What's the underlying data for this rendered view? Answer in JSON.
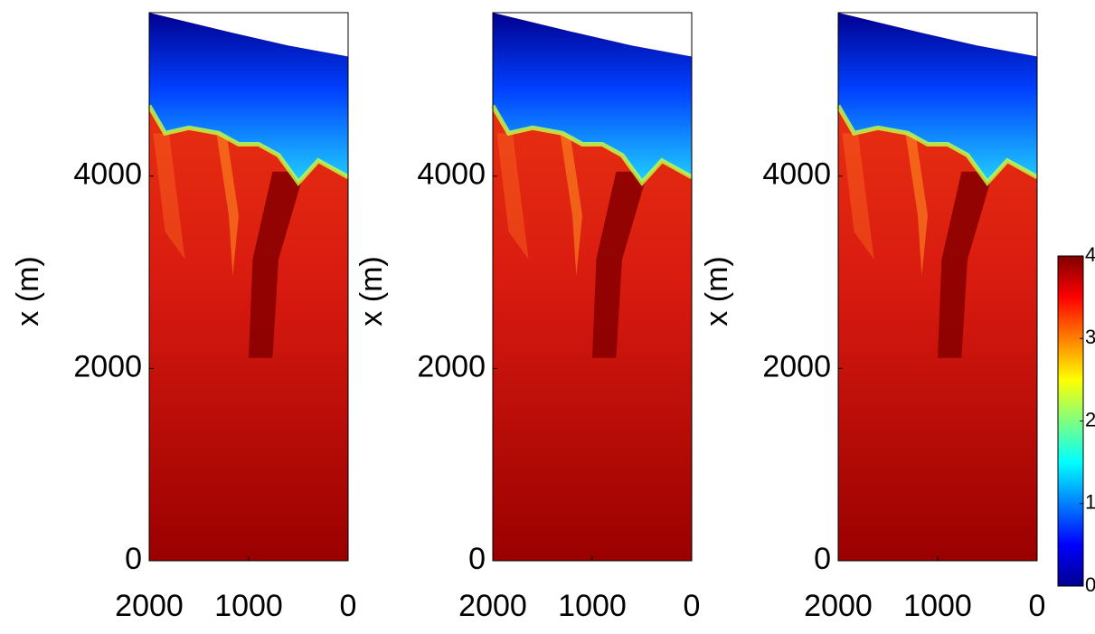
{
  "chart_data": [
    {
      "type": "heatmap",
      "ylabel": "x (m)",
      "xlim": [
        2000,
        0
      ],
      "ylim": [
        0,
        5700
      ],
      "xticks": [
        2000,
        1000,
        0
      ],
      "yticks": [
        0,
        2000,
        4000
      ]
    },
    {
      "type": "heatmap",
      "ylabel": "x (m)",
      "xlim": [
        2000,
        0
      ],
      "ylim": [
        0,
        5700
      ],
      "xticks": [
        2000,
        1000,
        0
      ],
      "yticks": [
        0,
        2000,
        4000
      ]
    },
    {
      "type": "heatmap",
      "ylabel": "x (m)",
      "xlim": [
        2000,
        0
      ],
      "ylim": [
        0,
        5700
      ],
      "xticks": [
        2000,
        1000,
        0
      ],
      "yticks": [
        0,
        2000,
        4000
      ],
      "colorbar": {
        "lim": [
          0,
          4
        ],
        "ticks": [
          0,
          1,
          2,
          3,
          4
        ]
      }
    }
  ]
}
